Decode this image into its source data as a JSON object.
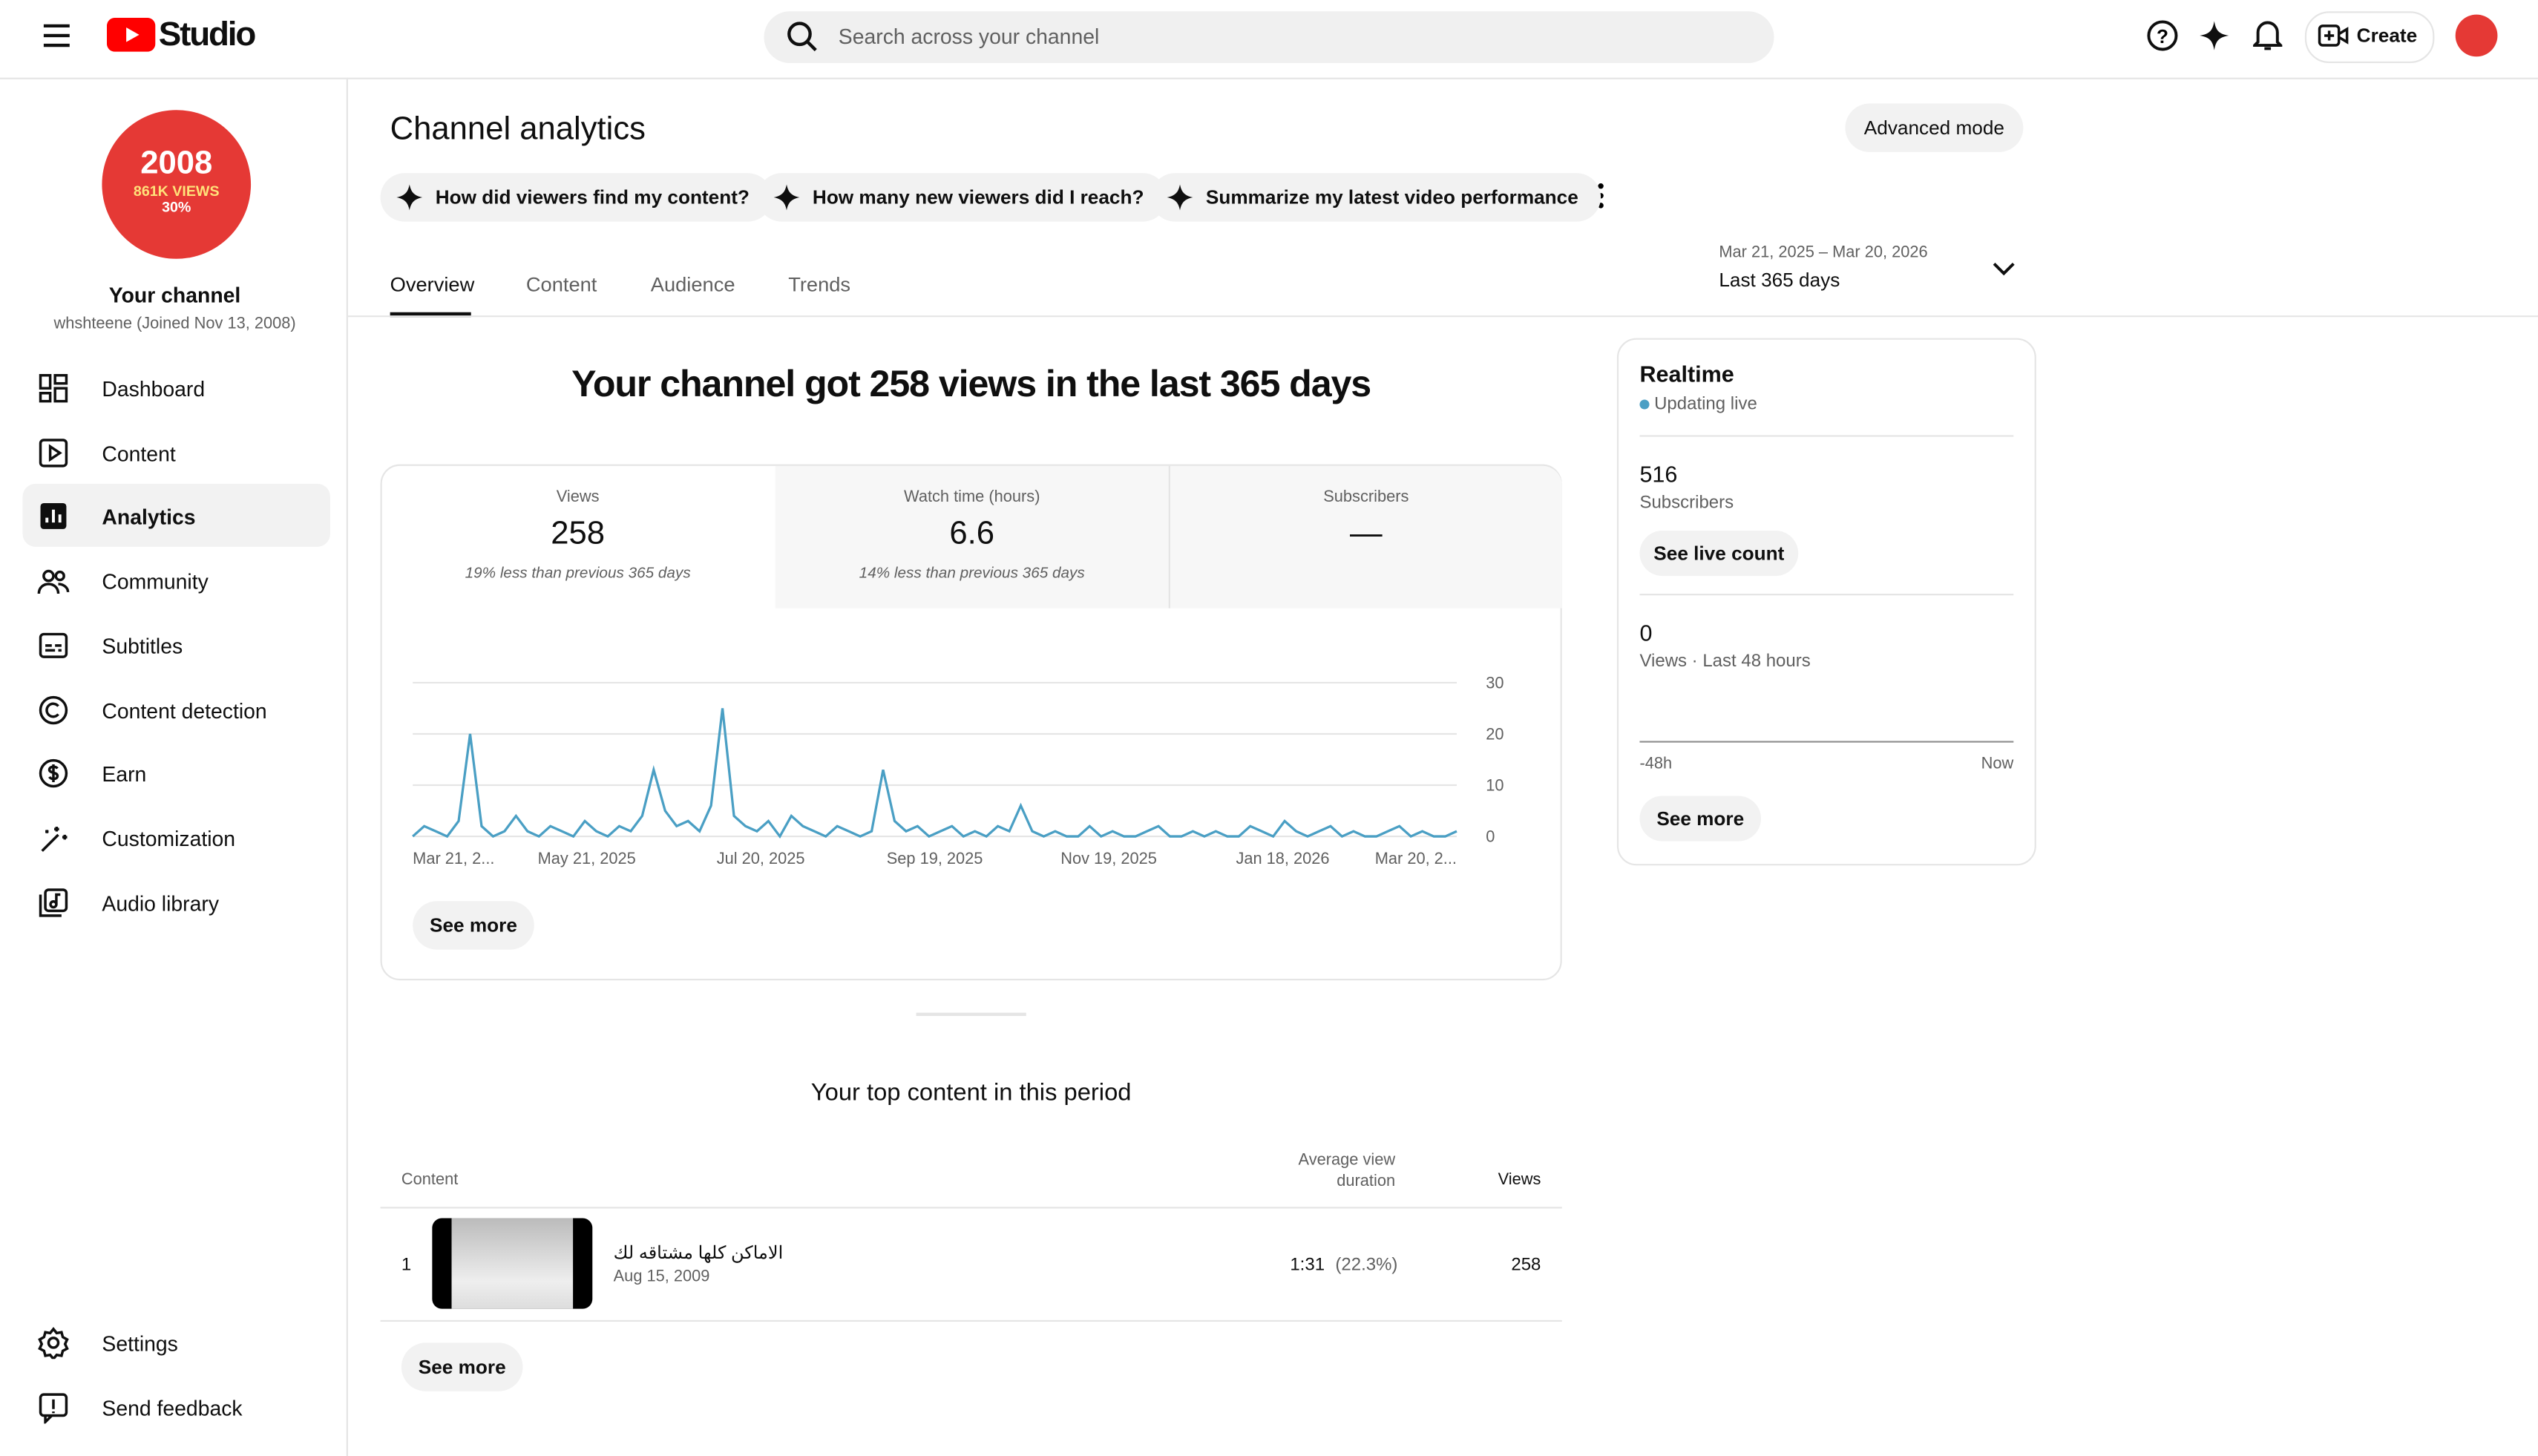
{
  "header": {
    "logo_text": "Studio",
    "search_placeholder": "Search across your channel",
    "create": "Create"
  },
  "sidebar": {
    "avatar": {
      "year": "2008",
      "views": "861K VIEWS",
      "percent": "30%"
    },
    "channel_name": "Your channel",
    "channel_meta": "whshteene (Joined Nov 13, 2008)",
    "nav": [
      "Dashboard",
      "Content",
      "Analytics",
      "Community",
      "Subtitles",
      "Content detection",
      "Earn",
      "Customization",
      "Audio library"
    ],
    "footer_nav": [
      "Settings",
      "Send feedback"
    ]
  },
  "page": {
    "title": "Channel analytics",
    "advanced_mode": "Advanced mode",
    "prompts": [
      "How did viewers find my content?",
      "How many new viewers did I reach?",
      "Summarize my latest video performance"
    ],
    "tabs": [
      "Overview",
      "Content",
      "Audience",
      "Trends"
    ],
    "date_range": "Mar 21, 2025 – Mar 20, 2026",
    "date_label": "Last 365 days",
    "headline": "Your channel got 258 views in the last 365 days"
  },
  "metrics": [
    {
      "label": "Views",
      "value": "258",
      "note": "19% less than previous 365 days"
    },
    {
      "label": "Watch time (hours)",
      "value": "6.6",
      "note": "14% less than previous 365 days"
    },
    {
      "label": "Subscribers",
      "value": "—"
    }
  ],
  "chart_data": {
    "type": "line",
    "color": "#4a9fc4",
    "grid": true,
    "ylim": [
      0,
      30
    ],
    "yticks": [
      0,
      10,
      20,
      30
    ],
    "x_labels": [
      "Mar 21, 2...",
      "May 21, 2025",
      "Jul 20, 2025",
      "Sep 19, 2025",
      "Nov 19, 2025",
      "Jan 18, 2026",
      "Mar 20, 2..."
    ],
    "values": [
      0,
      2,
      1,
      0,
      3,
      20,
      2,
      0,
      1,
      4,
      1,
      0,
      2,
      1,
      0,
      3,
      1,
      0,
      2,
      1,
      4,
      13,
      5,
      2,
      3,
      1,
      6,
      25,
      4,
      2,
      1,
      3,
      0,
      4,
      2,
      1,
      0,
      2,
      1,
      0,
      1,
      13,
      3,
      1,
      2,
      0,
      1,
      2,
      0,
      1,
      0,
      2,
      1,
      6,
      1,
      0,
      1,
      0,
      0,
      2,
      0,
      1,
      0,
      0,
      1,
      2,
      0,
      0,
      1,
      0,
      1,
      0,
      0,
      2,
      1,
      0,
      3,
      1,
      0,
      1,
      2,
      0,
      1,
      0,
      0,
      1,
      2,
      0,
      1,
      0,
      0,
      1
    ]
  },
  "overview": {
    "see_more": "See more"
  },
  "realtime": {
    "title": "Realtime",
    "status": "Updating live",
    "subscribers": "516",
    "subscribers_label": "Subscribers",
    "live_count": "See live count",
    "views": "0",
    "views_label": "Views · Last 48 hours",
    "axis_start": "-48h",
    "axis_end": "Now",
    "see_more": "See more"
  },
  "top_content": {
    "title": "Your top content in this period",
    "columns": [
      "Content",
      "Average view duration",
      "Views"
    ],
    "rows": [
      {
        "rank": "1",
        "title": "الاماكن كلها مشتاقه لك",
        "date": "Aug 15, 2009",
        "duration": "1:31",
        "percent": "(22.3%)",
        "views": "258"
      }
    ],
    "see_more": "See more"
  }
}
